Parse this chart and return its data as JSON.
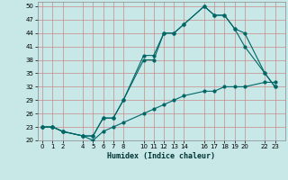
{
  "xlabel": "Humidex (Indice chaleur)",
  "background_color": "#c8e8e8",
  "line_color": "#006666",
  "ylim": [
    20,
    51
  ],
  "xlim": [
    -0.5,
    24
  ],
  "yticks": [
    20,
    23,
    26,
    29,
    32,
    35,
    38,
    41,
    44,
    47,
    50
  ],
  "xticks": [
    0,
    1,
    2,
    4,
    5,
    6,
    7,
    8,
    10,
    11,
    12,
    13,
    14,
    16,
    17,
    18,
    19,
    20,
    22,
    23
  ],
  "line1_x": [
    0,
    1,
    2,
    4,
    5,
    6,
    7,
    8,
    10,
    11,
    12,
    13,
    14,
    16,
    17,
    18,
    19,
    20,
    22,
    23
  ],
  "line1_y": [
    23,
    23,
    22,
    21,
    21,
    25,
    25,
    29,
    39,
    39,
    44,
    44,
    46,
    50,
    48,
    48,
    45,
    44,
    35,
    32
  ],
  "line2_x": [
    0,
    1,
    2,
    4,
    5,
    6,
    7,
    8,
    10,
    11,
    12,
    13,
    14,
    16,
    17,
    18,
    19,
    20,
    22,
    23
  ],
  "line2_y": [
    23,
    23,
    22,
    21,
    21,
    25,
    25,
    29,
    38,
    38,
    44,
    44,
    46,
    50,
    48,
    48,
    45,
    41,
    35,
    32
  ],
  "line3_x": [
    0,
    1,
    2,
    4,
    5,
    6,
    7,
    8,
    10,
    11,
    12,
    13,
    14,
    16,
    17,
    18,
    19,
    20,
    22,
    23
  ],
  "line3_y": [
    23,
    23,
    22,
    21,
    20,
    22,
    23,
    24,
    26,
    27,
    28,
    29,
    30,
    31,
    31,
    32,
    32,
    32,
    33,
    33
  ]
}
